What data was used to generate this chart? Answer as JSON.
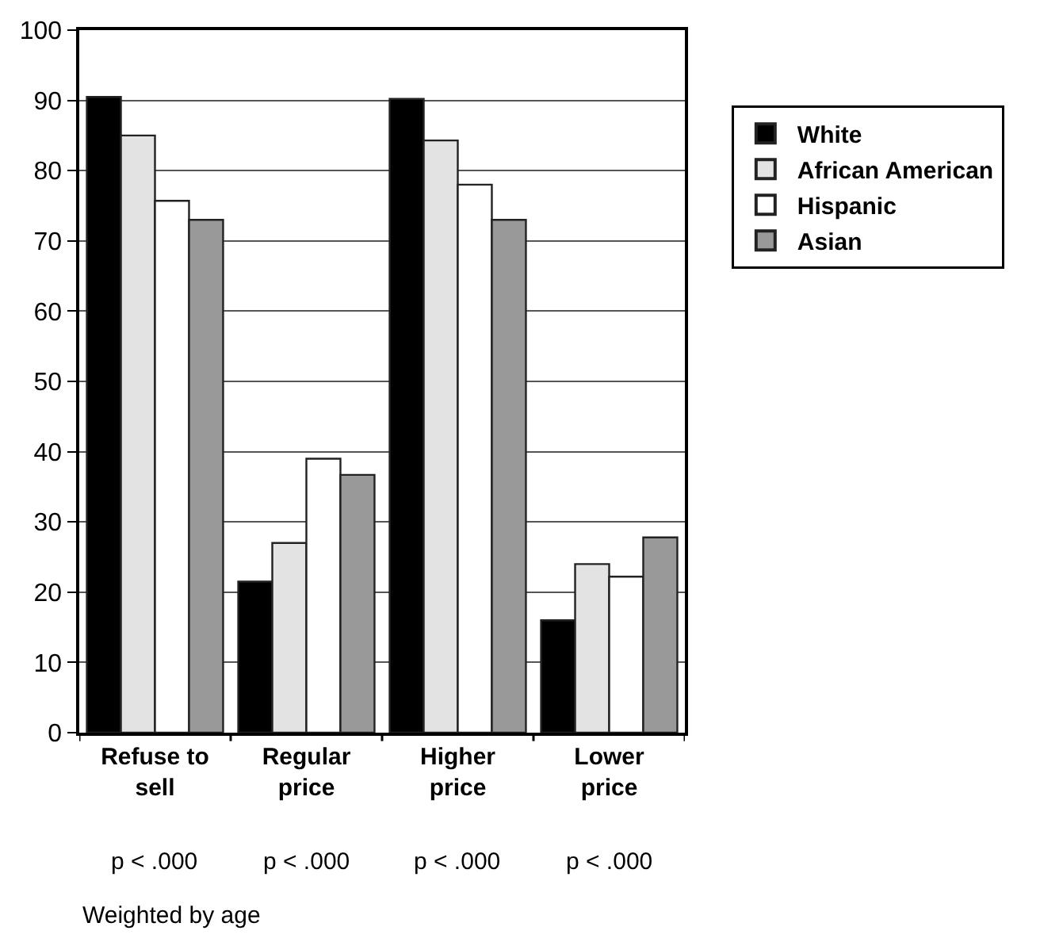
{
  "chart_data": {
    "type": "bar",
    "categories": [
      "Refuse to sell",
      "Regular price",
      "Higher price",
      "Lower price"
    ],
    "series": [
      {
        "name": "White",
        "color": "#000000",
        "values": [
          90.5,
          21.5,
          90.2,
          16
        ]
      },
      {
        "name": "African American",
        "color": "#e3e3e3",
        "values": [
          85,
          27,
          84.3,
          24
        ]
      },
      {
        "name": "Hispanic",
        "color": "#ffffff",
        "values": [
          75.7,
          39,
          78,
          22.2
        ]
      },
      {
        "name": "Asian",
        "color": "#999999",
        "values": [
          73,
          36.7,
          73,
          27.8
        ]
      }
    ],
    "ylim": [
      0,
      100
    ],
    "yticks": [
      0,
      10,
      20,
      30,
      40,
      50,
      60,
      70,
      80,
      90,
      100
    ],
    "grid": "y",
    "legend": "top right",
    "annotations": [
      "p < .000",
      "p < .000",
      "p < .000",
      "p < .000",
      "Weighted by age"
    ]
  }
}
